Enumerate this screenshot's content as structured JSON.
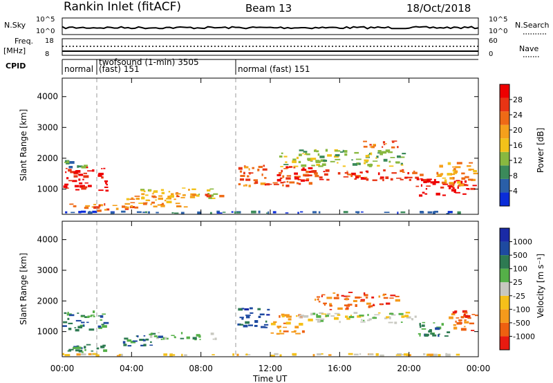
{
  "header": {
    "station": "Rankin Inlet (fitACF)",
    "beam": "Beam 13",
    "date": "18/Oct/2018"
  },
  "top_panels": {
    "nsky": {
      "label": "N.Sky",
      "ticks": [
        "10^5",
        "10^0"
      ]
    },
    "nsearch": {
      "label": "N.Search",
      "ticks": [
        "10^5",
        "10^0"
      ]
    },
    "freq": {
      "label_line1": "Freq.",
      "label_line2": "[MHz]",
      "ticks": [
        "18",
        "8"
      ]
    },
    "nave": {
      "label": "Nave",
      "ticks": [
        "60",
        "0"
      ]
    },
    "cpid": {
      "label": "CPID",
      "segments": [
        {
          "name": "seg-normal",
          "text": "normal",
          "start_hour": 0
        },
        {
          "name": "seg-twofsound",
          "text": "twofsound (1-min) 3505",
          "text2": "(fast) 151",
          "start_hour": 2.0
        },
        {
          "name": "seg-normal-fast",
          "text": "normal (fast) 151",
          "start_hour": 10.0
        }
      ]
    }
  },
  "time_axis": {
    "label": "Time UT",
    "ticks": [
      {
        "hour": 0,
        "label": "00:00"
      },
      {
        "hour": 4,
        "label": "04:00"
      },
      {
        "hour": 8,
        "label": "08:00"
      },
      {
        "hour": 12,
        "label": "12:00"
      },
      {
        "hour": 16,
        "label": "16:00"
      },
      {
        "hour": 20,
        "label": "20:00"
      },
      {
        "hour": 24,
        "label": "00:00"
      }
    ]
  },
  "range_axis": {
    "label": "Slant Range [km]",
    "ticks": [
      "1000",
      "2000",
      "3000",
      "4000"
    ]
  },
  "colorbars": {
    "power": {
      "title": "Power [dB]",
      "labels": [
        "4",
        "8",
        "12",
        "16",
        "20",
        "24",
        "28"
      ],
      "colors": [
        "#0b2dd8",
        "#2a5fa8",
        "#3b8a5a",
        "#88b840",
        "#f2c21a",
        "#f5a01c",
        "#ee6a16",
        "#e83414",
        "#ee0000"
      ]
    },
    "velocity": {
      "title": "Velocity [m s⁻¹]",
      "labels": [
        "1000",
        "500",
        "100",
        "25",
        "-25",
        "-100",
        "-500",
        "-1000"
      ],
      "colors": [
        "#1a2aa6",
        "#1e4aa0",
        "#2e7a52",
        "#55b048",
        "#c8c8c0",
        "#f5c01a",
        "#f59a1c",
        "#ee6010",
        "#e81a10"
      ]
    }
  },
  "chart_data": [
    {
      "type": "heatmap",
      "name": "power-panel",
      "title": "Power",
      "xlabel": "Time UT",
      "ylabel": "Slant Range [km]",
      "xlim_hours": [
        0,
        24
      ],
      "ylim_km": [
        180,
        4600
      ],
      "colorbar_title": "Power [dB]",
      "patches": [
        {
          "t": [
            0.0,
            1.9
          ],
          "r": [
            950,
            1750
          ],
          "level": 8
        },
        {
          "t": [
            2.0,
            2.7
          ],
          "r": [
            900,
            1700
          ],
          "level": 8
        },
        {
          "t": [
            0.0,
            1.8
          ],
          "r": [
            1650,
            1950
          ],
          "level": 2
        },
        {
          "t": [
            0.3,
            2.8
          ],
          "r": [
            250,
            550
          ],
          "level": 6
        },
        {
          "t": [
            2.5,
            4.5
          ],
          "r": [
            300,
            520
          ],
          "level": 6
        },
        {
          "t": [
            3.5,
            7.5
          ],
          "r": [
            400,
            800
          ],
          "level": 5
        },
        {
          "t": [
            4.5,
            9.0
          ],
          "r": [
            650,
            1050
          ],
          "level": 4
        },
        {
          "t": [
            6.5,
            9.5
          ],
          "r": [
            700,
            900
          ],
          "level": 6
        },
        {
          "t": [
            10.1,
            11.8
          ],
          "r": [
            1050,
            1800
          ],
          "level": 6
        },
        {
          "t": [
            11.5,
            14.5
          ],
          "r": [
            1050,
            1750
          ],
          "level": 7
        },
        {
          "t": [
            12.5,
            20.0
          ],
          "r": [
            1700,
            2300
          ],
          "level": 3
        },
        {
          "t": [
            14.0,
            21.0
          ],
          "r": [
            1250,
            1650
          ],
          "level": 7
        },
        {
          "t": [
            17.0,
            19.5
          ],
          "r": [
            2300,
            2600
          ],
          "level": 6
        },
        {
          "t": [
            20.3,
            24.0
          ],
          "r": [
            750,
            1350
          ],
          "level": 8
        },
        {
          "t": [
            21.5,
            24.0
          ],
          "r": [
            1050,
            1900
          ],
          "level": 5
        },
        {
          "t": [
            0.0,
            24.0
          ],
          "r": [
            190,
            300
          ],
          "level": 1
        }
      ]
    },
    {
      "type": "heatmap",
      "name": "velocity-panel",
      "title": "Velocity",
      "xlabel": "Time UT",
      "ylabel": "Slant Range [km]",
      "xlim_hours": [
        0,
        24
      ],
      "ylim_km": [
        180,
        4600
      ],
      "colorbar_title": "Velocity [m s-1]",
      "patches": [
        {
          "t": [
            0.0,
            1.9
          ],
          "r": [
            1000,
            1700
          ],
          "level": 2
        },
        {
          "t": [
            2.0,
            2.7
          ],
          "r": [
            950,
            1600
          ],
          "level": 2
        },
        {
          "t": [
            0.3,
            2.8
          ],
          "r": [
            300,
            650
          ],
          "level": 2
        },
        {
          "t": [
            3.5,
            6.0
          ],
          "r": [
            500,
            900
          ],
          "level": 2
        },
        {
          "t": [
            5.0,
            9.0
          ],
          "r": [
            700,
            1000
          ],
          "level": 3
        },
        {
          "t": [
            10.1,
            12.0
          ],
          "r": [
            1100,
            1800
          ],
          "level": 1
        },
        {
          "t": [
            12.0,
            14.0
          ],
          "r": [
            900,
            1600
          ],
          "level": 6
        },
        {
          "t": [
            13.5,
            20.5
          ],
          "r": [
            1250,
            1650
          ],
          "level": 4
        },
        {
          "t": [
            15.0,
            19.0
          ],
          "r": [
            1700,
            1950
          ],
          "level": 7
        },
        {
          "t": [
            14.5,
            19.5
          ],
          "r": [
            1950,
            2300
          ],
          "level": 7
        },
        {
          "t": [
            20.5,
            22.5
          ],
          "r": [
            800,
            1400
          ],
          "level": 2
        },
        {
          "t": [
            22.0,
            24.0
          ],
          "r": [
            1000,
            1700
          ],
          "level": 7
        },
        {
          "t": [
            0.0,
            24.0
          ],
          "r": [
            190,
            300
          ],
          "level": 5
        }
      ]
    }
  ]
}
